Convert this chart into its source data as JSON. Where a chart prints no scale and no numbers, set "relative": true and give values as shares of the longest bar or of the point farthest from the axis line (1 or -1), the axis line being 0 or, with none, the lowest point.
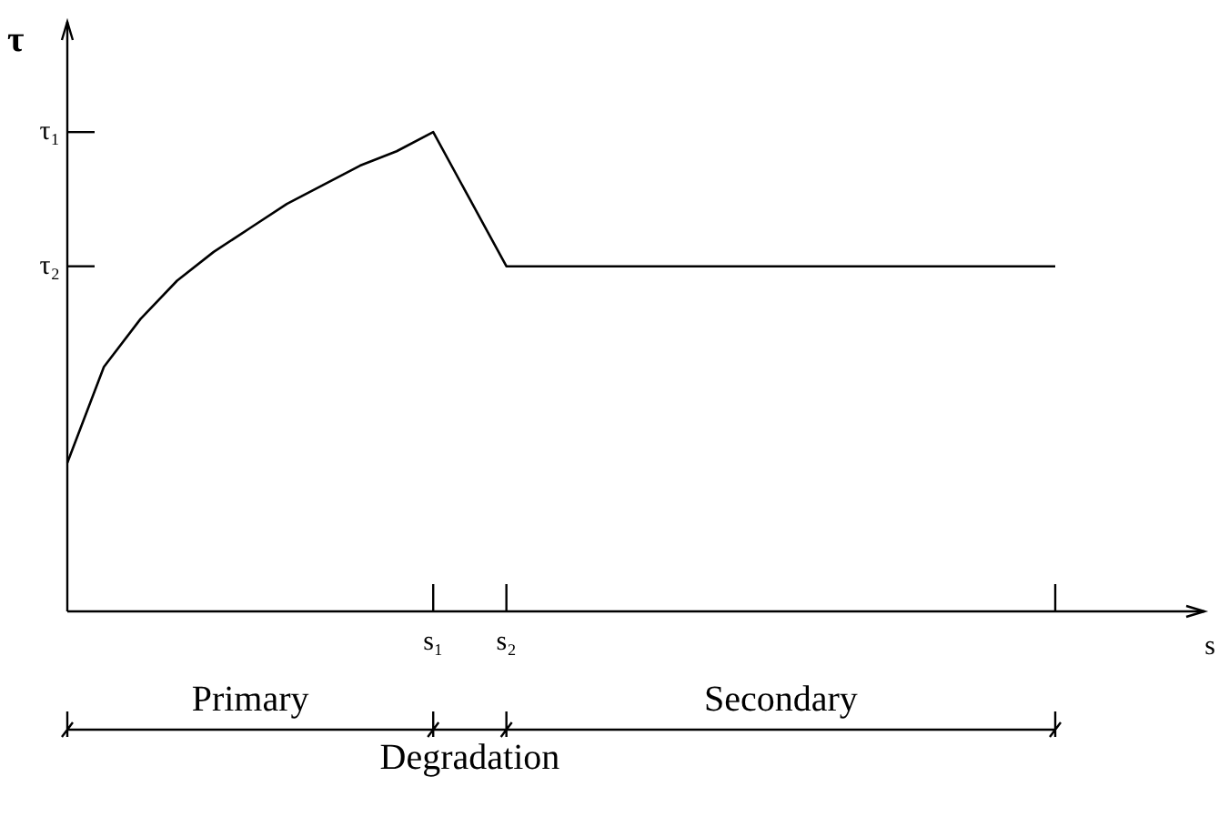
{
  "chart_data": {
    "type": "line",
    "xlabel": "s",
    "ylabel": "τ",
    "relative": true,
    "categories": [
      null,
      null,
      null,
      null,
      null,
      null,
      null,
      null,
      null,
      null,
      "s₁",
      null,
      "s₂",
      null,
      null,
      null,
      null,
      null,
      null,
      null,
      null,
      null,
      null,
      null,
      null,
      null,
      null,
      null
    ],
    "series": [
      {
        "color": "#000000",
        "values": [
          0.31,
          0.51,
          0.61,
          0.69,
          0.75,
          0.8,
          0.85,
          0.89,
          0.93,
          0.96,
          1,
          0.86,
          0.72,
          0.72,
          0.72,
          0.72,
          0.72,
          0.72,
          0.72,
          0.72,
          0.72,
          0.72,
          0.72,
          0.72,
          0.72,
          0.72,
          0.72,
          0.72
        ]
      }
    ],
    "ref_lines": [
      {
        "axis": "y",
        "value": 1,
        "label": "τ₁"
      },
      {
        "axis": "y",
        "value": 0.72,
        "label": "τ₂"
      }
    ],
    "annotations": [
      "Primary",
      "Secondary",
      "Degradation"
    ],
    "grid": "x",
    "legend": false,
    "marker": "none",
    "line_style": "solid"
  }
}
